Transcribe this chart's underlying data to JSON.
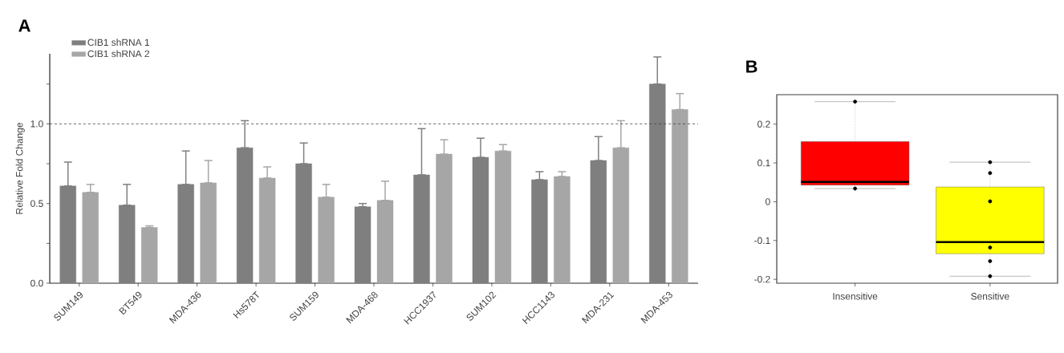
{
  "chart_data": [
    {
      "type": "bar",
      "title": "A",
      "ylabel": "Relative Fold Change",
      "categories": [
        "SUM149",
        "BT549",
        "MDA-436",
        "Hs578T",
        "SUM159",
        "MDA-468",
        "HCC1937",
        "SUM102",
        "HCC1143",
        "MDA-231",
        "MDA-453"
      ],
      "series": [
        {
          "name": "CIB1 shRNA 1",
          "color": "#7f7f7f",
          "values": [
            0.61,
            0.49,
            0.62,
            0.85,
            0.75,
            0.48,
            0.68,
            0.79,
            0.65,
            0.77,
            1.25
          ],
          "errors": [
            [
              0.61,
              0.76
            ],
            [
              0.49,
              0.62
            ],
            [
              0.62,
              0.83
            ],
            [
              0.85,
              1.02
            ],
            [
              0.75,
              0.88
            ],
            [
              0.48,
              0.5
            ],
            [
              0.68,
              0.97
            ],
            [
              0.79,
              0.91
            ],
            [
              0.65,
              0.7
            ],
            [
              0.77,
              0.92
            ],
            [
              1.25,
              1.42
            ]
          ]
        },
        {
          "name": "CIB1 shRNA 2",
          "color": "#a6a6a6",
          "values": [
            0.57,
            0.35,
            0.63,
            0.66,
            0.54,
            0.52,
            0.81,
            0.83,
            0.67,
            0.85,
            1.09
          ],
          "errors": [
            [
              0.57,
              0.62
            ],
            [
              0.35,
              0.36
            ],
            [
              0.63,
              0.77
            ],
            [
              0.66,
              0.73
            ],
            [
              0.54,
              0.62
            ],
            [
              0.52,
              0.64
            ],
            [
              0.81,
              0.9
            ],
            [
              0.83,
              0.87
            ],
            [
              0.67,
              0.7
            ],
            [
              0.85,
              1.02
            ],
            [
              1.09,
              1.19
            ]
          ]
        }
      ],
      "ylim": [
        0,
        1.44
      ],
      "yticks": [
        {
          "value": 0,
          "label": "0.0"
        },
        {
          "value": 0.25,
          "label": null
        },
        0.5,
        {
          "value": 0.75,
          "label": null
        },
        {
          "value": 1,
          "label": "1.0"
        },
        {
          "value": 1.25,
          "label": null
        }
      ],
      "ref_lines": [
        {
          "axis": "y",
          "value": 1,
          "line_style": "dashed",
          "color": "#404040"
        }
      ],
      "legend": "top left"
    },
    {
      "type": "box",
      "title": "B",
      "categories": [
        "Insensitive",
        "Sensitive"
      ],
      "boxes": [
        {
          "low": 0.034,
          "q1": 0.043,
          "median": 0.051,
          "q3": 0.155,
          "high": 0.258
        },
        {
          "low": -0.192,
          "q1": -0.134,
          "median": -0.104,
          "q3": 0.038,
          "high": 0.102
        }
      ],
      "colors": [
        "#ff0000",
        "#ffff00"
      ],
      "series": [
        {
          "type": "scatter",
          "color": "#000000",
          "x": [
            "Insensitive",
            "Insensitive",
            "Sensitive",
            "Sensitive",
            "Sensitive",
            "Sensitive",
            "Sensitive",
            "Sensitive"
          ],
          "values": [
            0.258,
            0.034,
            0.102,
            0.074,
            0.001,
            -0.118,
            -0.153,
            -0.192
          ]
        }
      ],
      "ylim": [
        -0.21,
        0.276
      ],
      "yticks": [
        -0.2,
        -0.1,
        0,
        0.1,
        0.2
      ]
    }
  ]
}
